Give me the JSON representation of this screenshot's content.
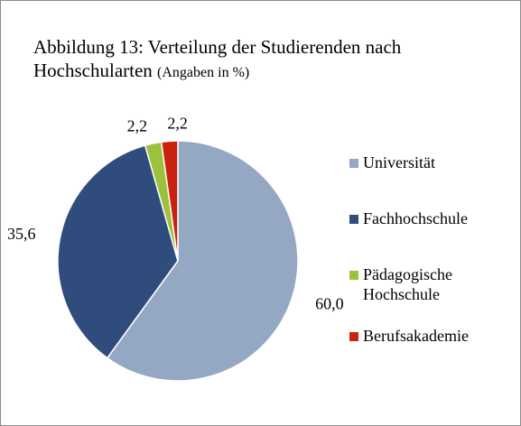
{
  "chart_data": {
    "type": "pie",
    "title": "Abbildung 13: Verteilung der Studierenden nach Hochschularten",
    "subtitle": "(Angaben in %)",
    "categories": [
      "Universität",
      "Fachhochschule",
      "Pädagogische Hochschule",
      "Berufsakademie"
    ],
    "values": [
      60.0,
      35.6,
      2.2,
      2.2
    ],
    "value_labels": [
      "60,0",
      "35,6",
      "2,2",
      "2,2"
    ],
    "colors": [
      "#94a8c4",
      "#2f4c7c",
      "#9dc13a",
      "#c8230e"
    ],
    "legend": "right"
  }
}
